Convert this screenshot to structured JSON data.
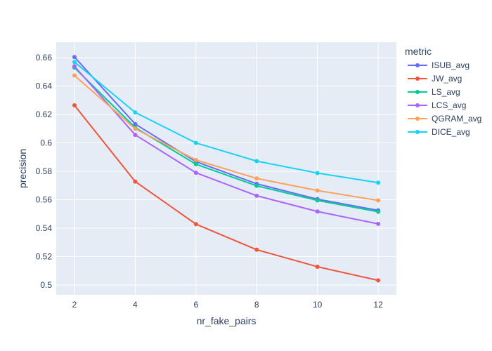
{
  "chart_data": {
    "type": "line",
    "xlabel": "nr_fake_pairs",
    "ylabel": "precision",
    "x": [
      2,
      4,
      6,
      8,
      10,
      12
    ],
    "xticks": [
      "2",
      "4",
      "6",
      "8",
      "10",
      "12"
    ],
    "xlim": [
      1.4,
      12.6
    ],
    "ylim": [
      0.493,
      0.671
    ],
    "yticks": [
      "0.5",
      "0.52",
      "0.54",
      "0.56",
      "0.58",
      "0.6",
      "0.62",
      "0.64",
      "0.66"
    ],
    "grid": true,
    "legend_title": "metric",
    "legend_position": "right",
    "plot_bgcolor": "#e5ecf6",
    "series": [
      {
        "name": "ISUB_avg",
        "color": "#636efa",
        "values": [
          0.6605,
          0.6133,
          0.5868,
          0.5712,
          0.5604,
          0.5525
        ]
      },
      {
        "name": "JW_avg",
        "color": "#ef553b",
        "values": [
          0.6265,
          0.5728,
          0.5428,
          0.5248,
          0.5128,
          0.5032
        ]
      },
      {
        "name": "LS_avg",
        "color": "#00cc96",
        "values": [
          0.653,
          0.6108,
          0.585,
          0.5698,
          0.5595,
          0.5515
        ]
      },
      {
        "name": "LCS_avg",
        "color": "#ab63fa",
        "values": [
          0.654,
          0.6057,
          0.579,
          0.5628,
          0.5517,
          0.543
        ]
      },
      {
        "name": "QGRAM_avg",
        "color": "#ffa15a",
        "values": [
          0.6475,
          0.61,
          0.588,
          0.575,
          0.5665,
          0.5595
        ]
      },
      {
        "name": "DICE_avg",
        "color": "#19d3f3",
        "values": [
          0.657,
          0.6215,
          0.6,
          0.5872,
          0.5788,
          0.572
        ]
      }
    ]
  }
}
